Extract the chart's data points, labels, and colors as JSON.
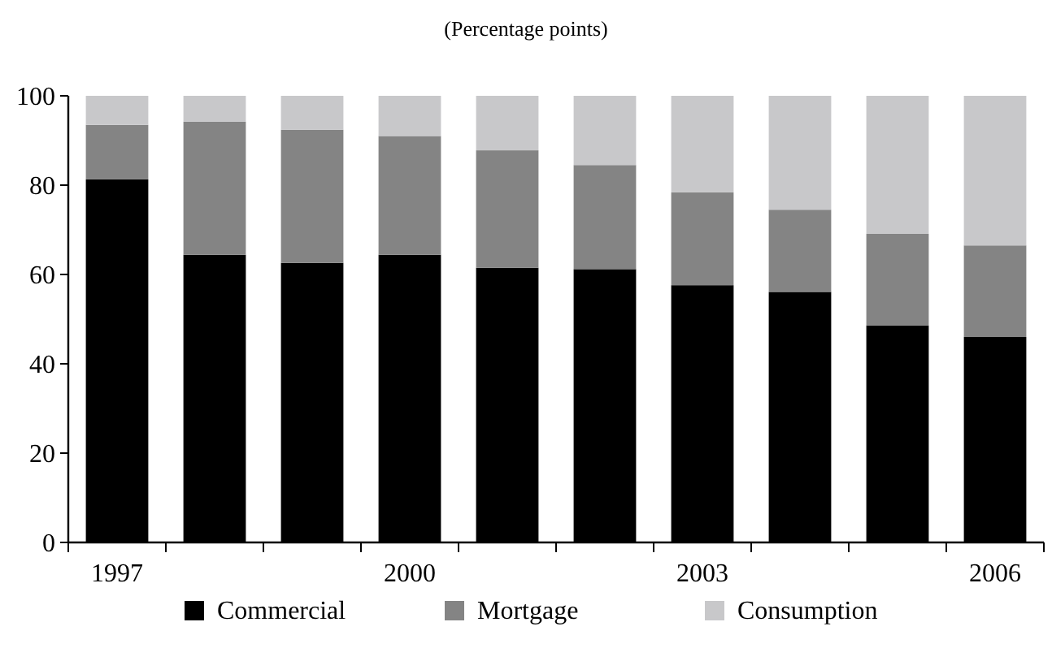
{
  "chart_data": {
    "type": "bar",
    "stacked": true,
    "title": "(Percentage points)",
    "categories": [
      "1997",
      null,
      null,
      "2000",
      null,
      null,
      "2003",
      null,
      null,
      "2006"
    ],
    "series": [
      {
        "name": "Commercial",
        "color": "#000000",
        "values": [
          81.3,
          64.4,
          62.6,
          64.4,
          61.5,
          61.2,
          57.6,
          56.1,
          48.6,
          46.0
        ]
      },
      {
        "name": "Mortgage",
        "color": "#848484",
        "values": [
          12.2,
          29.8,
          29.8,
          26.6,
          26.3,
          23.3,
          20.8,
          18.4,
          20.5,
          20.5
        ]
      },
      {
        "name": "Consumption",
        "color": "#c8c8ca",
        "values": [
          6.5,
          5.8,
          7.6,
          9.0,
          12.2,
          15.5,
          21.6,
          25.5,
          30.9,
          33.5
        ]
      }
    ],
    "ylim": [
      0,
      100
    ],
    "yticks": [
      0,
      20,
      40,
      60,
      80,
      100
    ],
    "grid": false,
    "legend": "bottom"
  }
}
